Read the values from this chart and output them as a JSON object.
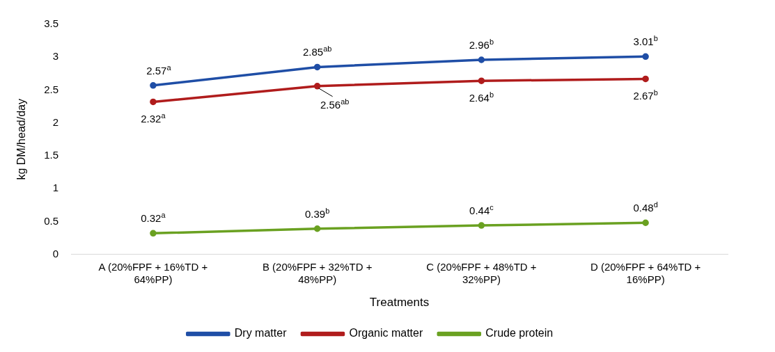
{
  "chart_data": {
    "type": "line",
    "xlabel": "Treatments",
    "ylabel": "kg DM/head/day",
    "categories": [
      "A (20%FPF + 16%TD + 64%PP)",
      "B (20%FPF + 32%TD + 48%PP)",
      "C (20%FPF + 48%TD + 32%PP)",
      "D (20%FPF + 64%TD + 16%PP)"
    ],
    "series": [
      {
        "name": "Dry matter",
        "color": "#1f4ea6",
        "values": [
          2.57,
          2.85,
          2.96,
          3.01
        ],
        "value_labels": [
          "2.57$^{a}$",
          "2.85$^{ab}$",
          "2.96$^{b}$",
          "3.01$^{b}$"
        ]
      },
      {
        "name": "Organic matter",
        "color": "#b01c1c",
        "values": [
          2.32,
          2.56,
          2.64,
          2.67
        ],
        "value_labels": [
          "2.32$^{a}$",
          "2.56$^{ab}$",
          "2.64$^{b}$",
          "2.67$^{b}$"
        ]
      },
      {
        "name": "Crude protein",
        "color": "#6aa121",
        "values": [
          0.32,
          0.39,
          0.44,
          0.48
        ],
        "value_labels": [
          "0.32$^{a}$",
          "0.39$^{b}$",
          "0.44$^{c}$",
          "0.48$^{d}$"
        ]
      }
    ],
    "ylim": [
      0,
      3.5
    ],
    "yticks": [
      0,
      0.5,
      1,
      1.5,
      2,
      2.5,
      3,
      3.5
    ],
    "grid": false,
    "legend": "bottom",
    "marker": "circle",
    "line_style": "solid"
  }
}
